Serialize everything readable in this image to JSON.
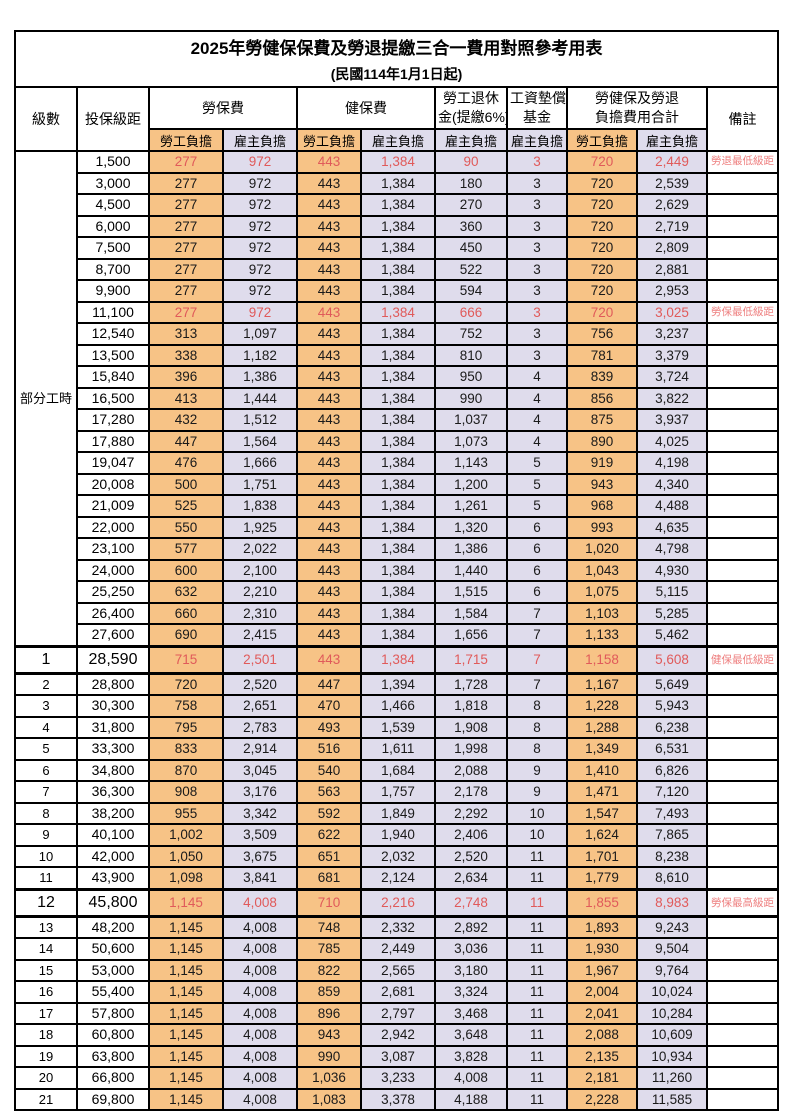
{
  "title": {
    "line1": "2025年勞健保保費及勞退提繳三合一費用對照參考用表",
    "line2": "(民國114年1月1日起)"
  },
  "header": {
    "level": "級數",
    "bracket": "投保級距",
    "labor_insurance": "勞保費",
    "health_insurance": "健保費",
    "pension_line1": "勞工退休",
    "pension_line2": "金(提繳6%)",
    "wage_fund_line1": "工資墊償",
    "wage_fund_line2": "基金",
    "total_line1": "勞健保及勞退",
    "total_line2": "負擔費用合計",
    "remark": "備註",
    "employee": "勞工負擔",
    "employer": "雇主負擔"
  },
  "colors": {
    "employee_bg": "#f7c386",
    "employer_bg": "#dfdcec",
    "red_value": "#e05a5a",
    "red_remark": "#ee7f7f",
    "border": "#000000"
  },
  "table": {
    "part_time_label": "部分工時",
    "part_time_span": 23,
    "column_pattern": [
      "emp",
      "er",
      "emp",
      "er",
      "er",
      "er",
      "emp",
      "er"
    ],
    "rows": [
      {
        "level": "",
        "bracket": "1,500",
        "values": [
          "277",
          "972",
          "443",
          "1,384",
          "90",
          "3",
          "720",
          "2,449"
        ],
        "remark": "勞退最低級距",
        "red": true,
        "em": false
      },
      {
        "level": "",
        "bracket": "3,000",
        "values": [
          "277",
          "972",
          "443",
          "1,384",
          "180",
          "3",
          "720",
          "2,539"
        ],
        "remark": "",
        "red": false,
        "em": false
      },
      {
        "level": "",
        "bracket": "4,500",
        "values": [
          "277",
          "972",
          "443",
          "1,384",
          "270",
          "3",
          "720",
          "2,629"
        ],
        "remark": "",
        "red": false,
        "em": false
      },
      {
        "level": "",
        "bracket": "6,000",
        "values": [
          "277",
          "972",
          "443",
          "1,384",
          "360",
          "3",
          "720",
          "2,719"
        ],
        "remark": "",
        "red": false,
        "em": false
      },
      {
        "level": "",
        "bracket": "7,500",
        "values": [
          "277",
          "972",
          "443",
          "1,384",
          "450",
          "3",
          "720",
          "2,809"
        ],
        "remark": "",
        "red": false,
        "em": false
      },
      {
        "level": "",
        "bracket": "8,700",
        "values": [
          "277",
          "972",
          "443",
          "1,384",
          "522",
          "3",
          "720",
          "2,881"
        ],
        "remark": "",
        "red": false,
        "em": false
      },
      {
        "level": "",
        "bracket": "9,900",
        "values": [
          "277",
          "972",
          "443",
          "1,384",
          "594",
          "3",
          "720",
          "2,953"
        ],
        "remark": "",
        "red": false,
        "em": false
      },
      {
        "level": "",
        "bracket": "11,100",
        "values": [
          "277",
          "972",
          "443",
          "1,384",
          "666",
          "3",
          "720",
          "3,025"
        ],
        "remark": "勞保最低級距",
        "red": true,
        "em": false
      },
      {
        "level": "",
        "bracket": "12,540",
        "values": [
          "313",
          "1,097",
          "443",
          "1,384",
          "752",
          "3",
          "756",
          "3,237"
        ],
        "remark": "",
        "red": false,
        "em": false
      },
      {
        "level": "",
        "bracket": "13,500",
        "values": [
          "338",
          "1,182",
          "443",
          "1,384",
          "810",
          "3",
          "781",
          "3,379"
        ],
        "remark": "",
        "red": false,
        "em": false
      },
      {
        "level": "",
        "bracket": "15,840",
        "values": [
          "396",
          "1,386",
          "443",
          "1,384",
          "950",
          "4",
          "839",
          "3,724"
        ],
        "remark": "",
        "red": false,
        "em": false
      },
      {
        "level": "",
        "bracket": "16,500",
        "values": [
          "413",
          "1,444",
          "443",
          "1,384",
          "990",
          "4",
          "856",
          "3,822"
        ],
        "remark": "",
        "red": false,
        "em": false
      },
      {
        "level": "",
        "bracket": "17,280",
        "values": [
          "432",
          "1,512",
          "443",
          "1,384",
          "1,037",
          "4",
          "875",
          "3,937"
        ],
        "remark": "",
        "red": false,
        "em": false
      },
      {
        "level": "",
        "bracket": "17,880",
        "values": [
          "447",
          "1,564",
          "443",
          "1,384",
          "1,073",
          "4",
          "890",
          "4,025"
        ],
        "remark": "",
        "red": false,
        "em": false
      },
      {
        "level": "",
        "bracket": "19,047",
        "values": [
          "476",
          "1,666",
          "443",
          "1,384",
          "1,143",
          "5",
          "919",
          "4,198"
        ],
        "remark": "",
        "red": false,
        "em": false
      },
      {
        "level": "",
        "bracket": "20,008",
        "values": [
          "500",
          "1,751",
          "443",
          "1,384",
          "1,200",
          "5",
          "943",
          "4,340"
        ],
        "remark": "",
        "red": false,
        "em": false
      },
      {
        "level": "",
        "bracket": "21,009",
        "values": [
          "525",
          "1,838",
          "443",
          "1,384",
          "1,261",
          "5",
          "968",
          "4,488"
        ],
        "remark": "",
        "red": false,
        "em": false
      },
      {
        "level": "",
        "bracket": "22,000",
        "values": [
          "550",
          "1,925",
          "443",
          "1,384",
          "1,320",
          "6",
          "993",
          "4,635"
        ],
        "remark": "",
        "red": false,
        "em": false
      },
      {
        "level": "",
        "bracket": "23,100",
        "values": [
          "577",
          "2,022",
          "443",
          "1,384",
          "1,386",
          "6",
          "1,020",
          "4,798"
        ],
        "remark": "",
        "red": false,
        "em": false
      },
      {
        "level": "",
        "bracket": "24,000",
        "values": [
          "600",
          "2,100",
          "443",
          "1,384",
          "1,440",
          "6",
          "1,043",
          "4,930"
        ],
        "remark": "",
        "red": false,
        "em": false
      },
      {
        "level": "",
        "bracket": "25,250",
        "values": [
          "632",
          "2,210",
          "443",
          "1,384",
          "1,515",
          "6",
          "1,075",
          "5,115"
        ],
        "remark": "",
        "red": false,
        "em": false
      },
      {
        "level": "",
        "bracket": "26,400",
        "values": [
          "660",
          "2,310",
          "443",
          "1,384",
          "1,584",
          "7",
          "1,103",
          "5,285"
        ],
        "remark": "",
        "red": false,
        "em": false
      },
      {
        "level": "",
        "bracket": "27,600",
        "values": [
          "690",
          "2,415",
          "443",
          "1,384",
          "1,656",
          "7",
          "1,133",
          "5,462"
        ],
        "remark": "",
        "red": false,
        "em": false
      },
      {
        "level": "1",
        "bracket": "28,590",
        "values": [
          "715",
          "2,501",
          "443",
          "1,384",
          "1,715",
          "7",
          "1,158",
          "5,608"
        ],
        "remark": "健保最低級距",
        "red": true,
        "em": true
      },
      {
        "level": "2",
        "bracket": "28,800",
        "values": [
          "720",
          "2,520",
          "447",
          "1,394",
          "1,728",
          "7",
          "1,167",
          "5,649"
        ],
        "remark": "",
        "red": false,
        "em": false
      },
      {
        "level": "3",
        "bracket": "30,300",
        "values": [
          "758",
          "2,651",
          "470",
          "1,466",
          "1,818",
          "8",
          "1,228",
          "5,943"
        ],
        "remark": "",
        "red": false,
        "em": false
      },
      {
        "level": "4",
        "bracket": "31,800",
        "values": [
          "795",
          "2,783",
          "493",
          "1,539",
          "1,908",
          "8",
          "1,288",
          "6,238"
        ],
        "remark": "",
        "red": false,
        "em": false
      },
      {
        "level": "5",
        "bracket": "33,300",
        "values": [
          "833",
          "2,914",
          "516",
          "1,611",
          "1,998",
          "8",
          "1,349",
          "6,531"
        ],
        "remark": "",
        "red": false,
        "em": false
      },
      {
        "level": "6",
        "bracket": "34,800",
        "values": [
          "870",
          "3,045",
          "540",
          "1,684",
          "2,088",
          "9",
          "1,410",
          "6,826"
        ],
        "remark": "",
        "red": false,
        "em": false
      },
      {
        "level": "7",
        "bracket": "36,300",
        "values": [
          "908",
          "3,176",
          "563",
          "1,757",
          "2,178",
          "9",
          "1,471",
          "7,120"
        ],
        "remark": "",
        "red": false,
        "em": false
      },
      {
        "level": "8",
        "bracket": "38,200",
        "values": [
          "955",
          "3,342",
          "592",
          "1,849",
          "2,292",
          "10",
          "1,547",
          "7,493"
        ],
        "remark": "",
        "red": false,
        "em": false
      },
      {
        "level": "9",
        "bracket": "40,100",
        "values": [
          "1,002",
          "3,509",
          "622",
          "1,940",
          "2,406",
          "10",
          "1,624",
          "7,865"
        ],
        "remark": "",
        "red": false,
        "em": false
      },
      {
        "level": "10",
        "bracket": "42,000",
        "values": [
          "1,050",
          "3,675",
          "651",
          "2,032",
          "2,520",
          "11",
          "1,701",
          "8,238"
        ],
        "remark": "",
        "red": false,
        "em": false
      },
      {
        "level": "11",
        "bracket": "43,900",
        "values": [
          "1,098",
          "3,841",
          "681",
          "2,124",
          "2,634",
          "11",
          "1,779",
          "8,610"
        ],
        "remark": "",
        "red": false,
        "em": false
      },
      {
        "level": "12",
        "bracket": "45,800",
        "values": [
          "1,145",
          "4,008",
          "710",
          "2,216",
          "2,748",
          "11",
          "1,855",
          "8,983"
        ],
        "remark": "勞保最高級距",
        "red": true,
        "em": true
      },
      {
        "level": "13",
        "bracket": "48,200",
        "values": [
          "1,145",
          "4,008",
          "748",
          "2,332",
          "2,892",
          "11",
          "1,893",
          "9,243"
        ],
        "remark": "",
        "red": false,
        "em": false
      },
      {
        "level": "14",
        "bracket": "50,600",
        "values": [
          "1,145",
          "4,008",
          "785",
          "2,449",
          "3,036",
          "11",
          "1,930",
          "9,504"
        ],
        "remark": "",
        "red": false,
        "em": false
      },
      {
        "level": "15",
        "bracket": "53,000",
        "values": [
          "1,145",
          "4,008",
          "822",
          "2,565",
          "3,180",
          "11",
          "1,967",
          "9,764"
        ],
        "remark": "",
        "red": false,
        "em": false
      },
      {
        "level": "16",
        "bracket": "55,400",
        "values": [
          "1,145",
          "4,008",
          "859",
          "2,681",
          "3,324",
          "11",
          "2,004",
          "10,024"
        ],
        "remark": "",
        "red": false,
        "em": false
      },
      {
        "level": "17",
        "bracket": "57,800",
        "values": [
          "1,145",
          "4,008",
          "896",
          "2,797",
          "3,468",
          "11",
          "2,041",
          "10,284"
        ],
        "remark": "",
        "red": false,
        "em": false
      },
      {
        "level": "18",
        "bracket": "60,800",
        "values": [
          "1,145",
          "4,008",
          "943",
          "2,942",
          "3,648",
          "11",
          "2,088",
          "10,609"
        ],
        "remark": "",
        "red": false,
        "em": false
      },
      {
        "level": "19",
        "bracket": "63,800",
        "values": [
          "1,145",
          "4,008",
          "990",
          "3,087",
          "3,828",
          "11",
          "2,135",
          "10,934"
        ],
        "remark": "",
        "red": false,
        "em": false
      },
      {
        "level": "20",
        "bracket": "66,800",
        "values": [
          "1,145",
          "4,008",
          "1,036",
          "3,233",
          "4,008",
          "11",
          "2,181",
          "11,260"
        ],
        "remark": "",
        "red": false,
        "em": false
      },
      {
        "level": "21",
        "bracket": "69,800",
        "values": [
          "1,145",
          "4,008",
          "1,083",
          "3,378",
          "4,188",
          "11",
          "2,228",
          "11,585"
        ],
        "remark": "",
        "red": false,
        "em": false
      }
    ]
  }
}
